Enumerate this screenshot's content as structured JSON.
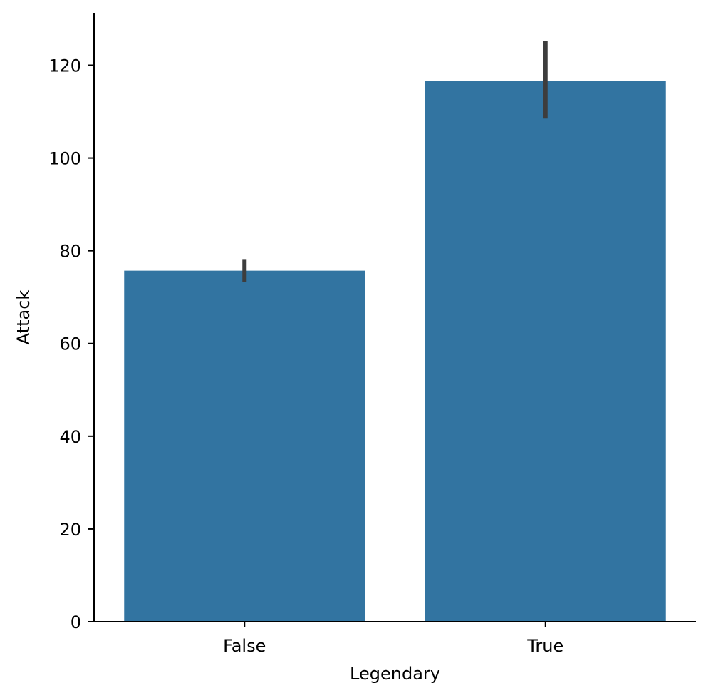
{
  "chart_data": {
    "type": "bar",
    "categories": [
      "False",
      "True"
    ],
    "values": [
      75.7,
      116.6
    ],
    "error_bars": [
      {
        "low": 73.2,
        "high": 78.2
      },
      {
        "low": 108.5,
        "high": 125.3
      }
    ],
    "xlabel": "Legendary",
    "ylabel": "Attack",
    "ylim": [
      0,
      131.3
    ],
    "yticks": [
      0,
      20,
      40,
      60,
      80,
      100,
      120
    ],
    "grid": false,
    "legend": "none",
    "colors": {
      "bar": "#3274a1",
      "error_bar": "#3d3d3d",
      "axis": "#000000"
    }
  }
}
